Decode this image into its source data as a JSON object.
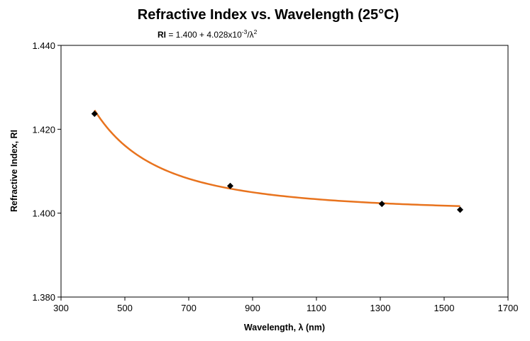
{
  "chart_data": {
    "type": "scatter",
    "title": "Refractive Index vs. Wavelength (25°C)",
    "equation": {
      "lhs": "RI",
      "eq": " = 1.400 + 4.028x10",
      "exp": "-3",
      "rest": "/λ",
      "pow": "2"
    },
    "xlabel": "Wavelength, λ (nm)",
    "ylabel": "Refractive Index, RI",
    "xlim": [
      300,
      1700
    ],
    "ylim": [
      1.38,
      1.44
    ],
    "x_ticks": [
      "300",
      "500",
      "700",
      "900",
      "1100",
      "1300",
      "1500",
      "1700"
    ],
    "y_ticks": [
      "1.380",
      "1.400",
      "1.420",
      "1.440"
    ],
    "grid": false,
    "series": [
      {
        "points": [
          {
            "x": 405,
            "y": 1.4237
          },
          {
            "x": 830,
            "y": 1.4065
          },
          {
            "x": 1305,
            "y": 1.4022
          },
          {
            "x": 1550,
            "y": 1.4008
          }
        ],
        "marker_color": "#000000"
      }
    ],
    "fit": {
      "curve_color": "#E8731E",
      "a": 1.4,
      "b": 0.004028
    }
  }
}
